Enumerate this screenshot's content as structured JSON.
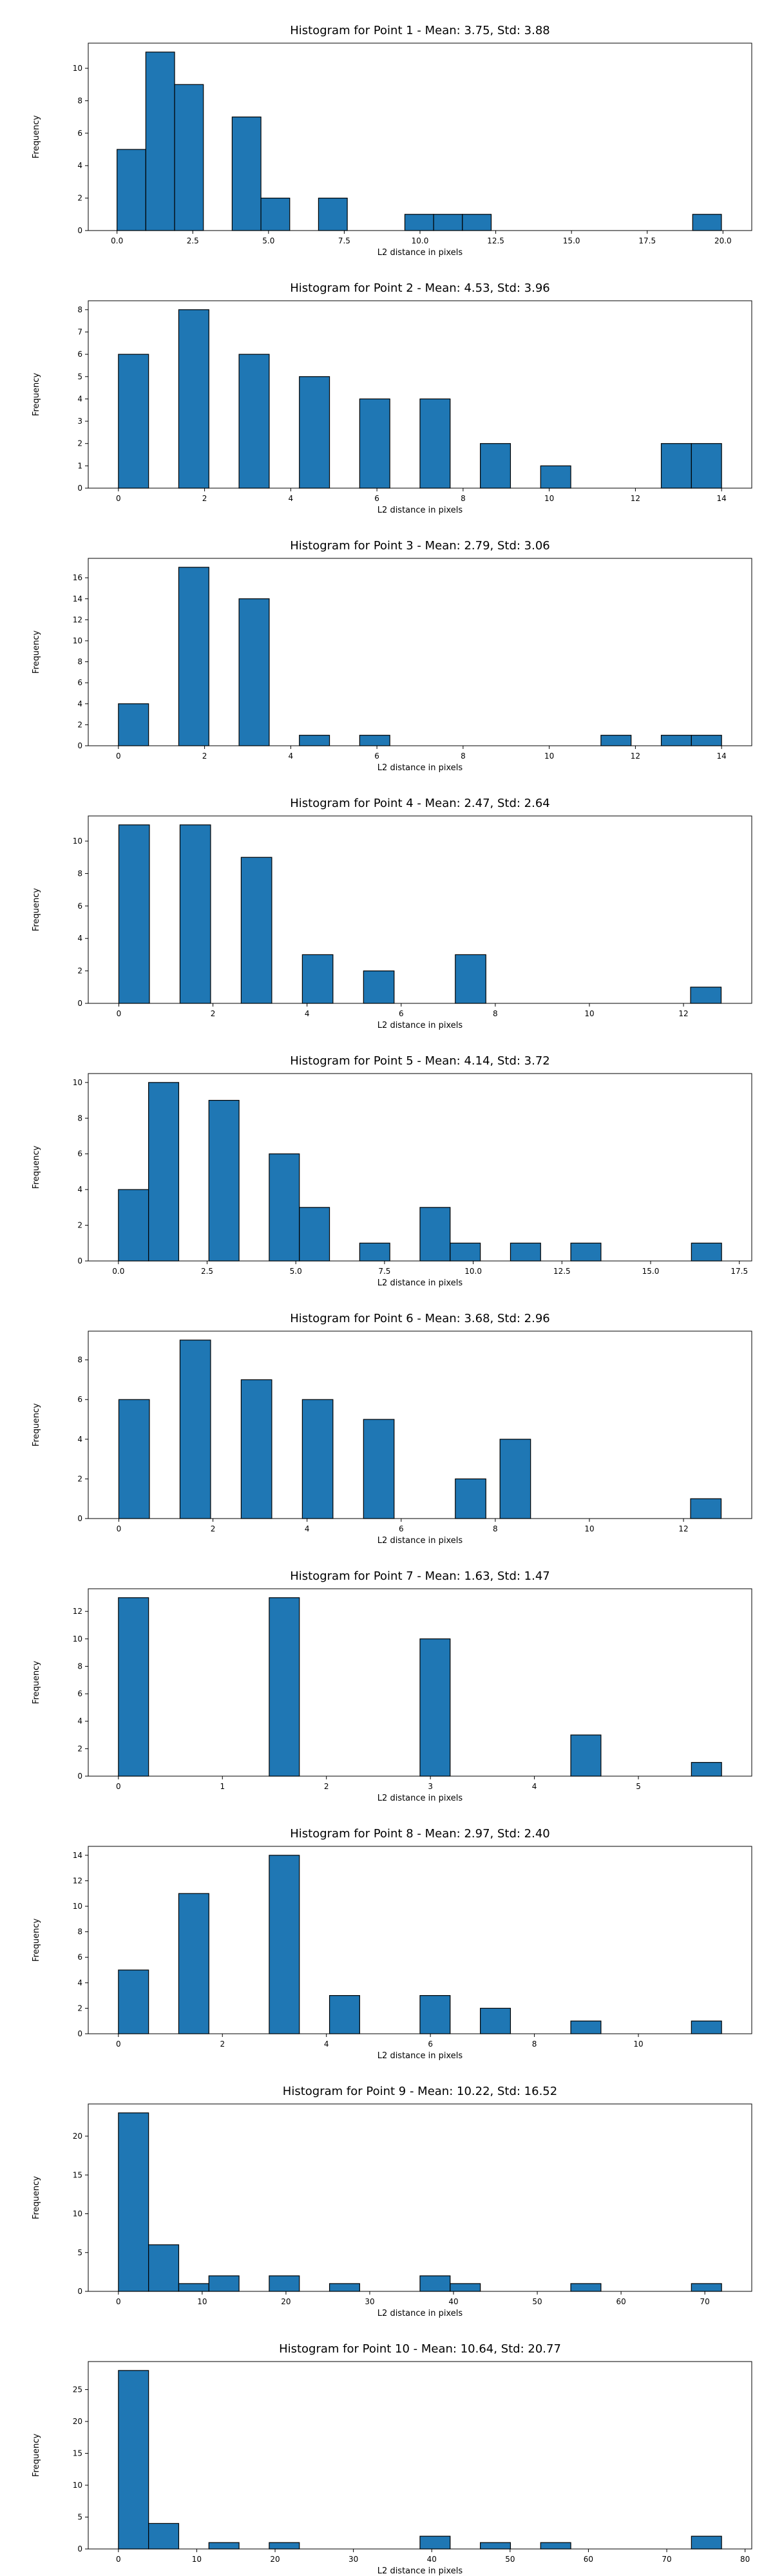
{
  "chart_data": [
    {
      "type": "bar",
      "title": "Histogram for Point 1 - Mean: 3.75, Std: 3.88",
      "xlabel": "L2 distance in pixels",
      "ylabel": "Frequency",
      "xlim": [
        -0.95,
        20.95
      ],
      "ylim": [
        0,
        11.55
      ],
      "xticks": [
        0,
        2.5,
        5,
        7.5,
        10,
        12.5,
        15,
        17.5,
        20
      ],
      "xtick_labels": [
        "0.0",
        "2.5",
        "5.0",
        "7.5",
        "10.0",
        "12.5",
        "15.0",
        "17.5",
        "20.0"
      ],
      "yticks": [
        0,
        2,
        4,
        6,
        8,
        10
      ],
      "bars": [
        {
          "x0": 0.0,
          "x1": 0.95,
          "value": 5
        },
        {
          "x0": 0.95,
          "x1": 1.9,
          "value": 11
        },
        {
          "x0": 1.9,
          "x1": 2.85,
          "value": 9
        },
        {
          "x0": 3.8,
          "x1": 4.75,
          "value": 7
        },
        {
          "x0": 4.75,
          "x1": 5.7,
          "value": 2
        },
        {
          "x0": 6.65,
          "x1": 7.6,
          "value": 2
        },
        {
          "x0": 9.5,
          "x1": 10.45,
          "value": 1
        },
        {
          "x0": 10.45,
          "x1": 11.4,
          "value": 1
        },
        {
          "x0": 11.4,
          "x1": 12.35,
          "value": 1
        },
        {
          "x0": 19.0,
          "x1": 19.95,
          "value": 1
        }
      ]
    },
    {
      "type": "bar",
      "title": "Histogram for Point 2 - Mean: 4.53, Std: 3.96",
      "xlabel": "L2 distance in pixels",
      "ylabel": "Frequency",
      "xlim": [
        -0.7,
        14.7
      ],
      "ylim": [
        0,
        8.4
      ],
      "xticks": [
        0,
        2,
        4,
        6,
        8,
        10,
        12,
        14
      ],
      "xtick_labels": [
        "0",
        "2",
        "4",
        "6",
        "8",
        "10",
        "12",
        "14"
      ],
      "yticks": [
        0,
        1,
        2,
        3,
        4,
        5,
        6,
        7,
        8
      ],
      "bars": [
        {
          "x0": 0.0,
          "x1": 0.7,
          "value": 6
        },
        {
          "x0": 1.4,
          "x1": 2.1,
          "value": 8
        },
        {
          "x0": 2.8,
          "x1": 3.5,
          "value": 6
        },
        {
          "x0": 4.2,
          "x1": 4.9,
          "value": 5
        },
        {
          "x0": 5.6,
          "x1": 6.3,
          "value": 4
        },
        {
          "x0": 7.0,
          "x1": 7.7,
          "value": 4
        },
        {
          "x0": 8.4,
          "x1": 9.1,
          "value": 2
        },
        {
          "x0": 9.8,
          "x1": 10.5,
          "value": 1
        },
        {
          "x0": 12.6,
          "x1": 13.3,
          "value": 2
        },
        {
          "x0": 13.3,
          "x1": 14.0,
          "value": 2
        }
      ]
    },
    {
      "type": "bar",
      "title": "Histogram for Point 3 - Mean: 2.79, Std: 3.06",
      "xlabel": "L2 distance in pixels",
      "ylabel": "Frequency",
      "xlim": [
        -0.7,
        14.7
      ],
      "ylim": [
        0,
        17.85
      ],
      "xticks": [
        0,
        2,
        4,
        6,
        8,
        10,
        12,
        14
      ],
      "xtick_labels": [
        "0",
        "2",
        "4",
        "6",
        "8",
        "10",
        "12",
        "14"
      ],
      "yticks": [
        0,
        2,
        4,
        6,
        8,
        10,
        12,
        14,
        16
      ],
      "bars": [
        {
          "x0": 0.0,
          "x1": 0.7,
          "value": 4
        },
        {
          "x0": 1.4,
          "x1": 2.1,
          "value": 17
        },
        {
          "x0": 2.8,
          "x1": 3.5,
          "value": 14
        },
        {
          "x0": 4.2,
          "x1": 4.9,
          "value": 1
        },
        {
          "x0": 5.6,
          "x1": 6.3,
          "value": 1
        },
        {
          "x0": 11.2,
          "x1": 11.9,
          "value": 1
        },
        {
          "x0": 12.6,
          "x1": 13.3,
          "value": 1
        },
        {
          "x0": 13.3,
          "x1": 14.0,
          "value": 1
        }
      ]
    },
    {
      "type": "bar",
      "title": "Histogram for Point 4 - Mean: 2.47, Std: 2.64",
      "xlabel": "L2 distance in pixels",
      "ylabel": "Frequency",
      "xlim": [
        -0.65,
        13.45
      ],
      "ylim": [
        0,
        11.55
      ],
      "xticks": [
        0,
        2,
        4,
        6,
        8,
        10,
        12
      ],
      "xtick_labels": [
        "0",
        "2",
        "4",
        "6",
        "8",
        "10",
        "12"
      ],
      "yticks": [
        0,
        2,
        4,
        6,
        8,
        10
      ],
      "bars": [
        {
          "x0": 0.0,
          "x1": 0.65,
          "value": 11
        },
        {
          "x0": 1.3,
          "x1": 1.95,
          "value": 11
        },
        {
          "x0": 2.6,
          "x1": 3.25,
          "value": 9
        },
        {
          "x0": 3.9,
          "x1": 4.55,
          "value": 3
        },
        {
          "x0": 5.2,
          "x1": 5.85,
          "value": 2
        },
        {
          "x0": 7.15,
          "x1": 7.8,
          "value": 3
        },
        {
          "x0": 12.15,
          "x1": 12.8,
          "value": 1
        }
      ]
    },
    {
      "type": "bar",
      "title": "Histogram for Point 5 - Mean: 4.14, Std: 3.72",
      "xlabel": "L2 distance in pixels",
      "ylabel": "Frequency",
      "xlim": [
        -0.85,
        17.85
      ],
      "ylim": [
        0,
        10.5
      ],
      "xticks": [
        0,
        2.5,
        5,
        7.5,
        10,
        12.5,
        15,
        17.5
      ],
      "xtick_labels": [
        "0.0",
        "2.5",
        "5.0",
        "7.5",
        "10.0",
        "12.5",
        "15.0",
        "17.5"
      ],
      "yticks": [
        0,
        2,
        4,
        6,
        8,
        10
      ],
      "bars": [
        {
          "x0": 0.0,
          "x1": 0.85,
          "value": 4
        },
        {
          "x0": 0.85,
          "x1": 1.7,
          "value": 10
        },
        {
          "x0": 2.55,
          "x1": 3.4,
          "value": 9
        },
        {
          "x0": 4.25,
          "x1": 5.1,
          "value": 6
        },
        {
          "x0": 5.1,
          "x1": 5.95,
          "value": 3
        },
        {
          "x0": 6.8,
          "x1": 7.65,
          "value": 1
        },
        {
          "x0": 8.5,
          "x1": 9.35,
          "value": 3
        },
        {
          "x0": 9.35,
          "x1": 10.2,
          "value": 1
        },
        {
          "x0": 11.05,
          "x1": 11.9,
          "value": 1
        },
        {
          "x0": 12.75,
          "x1": 13.6,
          "value": 1
        },
        {
          "x0": 16.15,
          "x1": 17.0,
          "value": 1
        }
      ]
    },
    {
      "type": "bar",
      "title": "Histogram for Point 6 - Mean: 3.68, Std: 2.96",
      "xlabel": "L2 distance in pixels",
      "ylabel": "Frequency",
      "xlim": [
        -0.65,
        13.45
      ],
      "ylim": [
        0,
        9.45
      ],
      "xticks": [
        0,
        2,
        4,
        6,
        8,
        10,
        12
      ],
      "xtick_labels": [
        "0",
        "2",
        "4",
        "6",
        "8",
        "10",
        "12"
      ],
      "yticks": [
        0,
        2,
        4,
        6,
        8
      ],
      "bars": [
        {
          "x0": 0.0,
          "x1": 0.65,
          "value": 6
        },
        {
          "x0": 1.3,
          "x1": 1.95,
          "value": 9
        },
        {
          "x0": 2.6,
          "x1": 3.25,
          "value": 7
        },
        {
          "x0": 3.9,
          "x1": 4.55,
          "value": 6
        },
        {
          "x0": 5.2,
          "x1": 5.85,
          "value": 5
        },
        {
          "x0": 7.15,
          "x1": 7.8,
          "value": 2
        },
        {
          "x0": 8.1,
          "x1": 8.75,
          "value": 4
        },
        {
          "x0": 12.15,
          "x1": 12.8,
          "value": 1
        }
      ]
    },
    {
      "type": "bar",
      "title": "Histogram for Point 7 - Mean: 1.63, Std: 1.47",
      "xlabel": "L2 distance in pixels",
      "ylabel": "Frequency",
      "xlim": [
        -0.29,
        6.09
      ],
      "ylim": [
        0,
        13.65
      ],
      "xticks": [
        0,
        1,
        2,
        3,
        4,
        5
      ],
      "xtick_labels": [
        "0",
        "1",
        "2",
        "3",
        "4",
        "5"
      ],
      "yticks": [
        0,
        2,
        4,
        6,
        8,
        10,
        12
      ],
      "bars": [
        {
          "x0": 0.0,
          "x1": 0.29,
          "value": 13
        },
        {
          "x0": 1.45,
          "x1": 1.74,
          "value": 13
        },
        {
          "x0": 2.9,
          "x1": 3.19,
          "value": 10
        },
        {
          "x0": 4.35,
          "x1": 4.64,
          "value": 3
        },
        {
          "x0": 5.51,
          "x1": 5.8,
          "value": 1
        }
      ]
    },
    {
      "type": "bar",
      "title": "Histogram for Point 8 - Mean: 2.97, Std: 2.40",
      "xlabel": "L2 distance in pixels",
      "ylabel": "Frequency",
      "xlim": [
        -0.58,
        12.18
      ],
      "ylim": [
        0,
        14.7
      ],
      "xticks": [
        0,
        2,
        4,
        6,
        8,
        10
      ],
      "xtick_labels": [
        "0",
        "2",
        "4",
        "6",
        "8",
        "10"
      ],
      "yticks": [
        0,
        2,
        4,
        6,
        8,
        10,
        12,
        14
      ],
      "bars": [
        {
          "x0": 0.0,
          "x1": 0.58,
          "value": 5
        },
        {
          "x0": 1.16,
          "x1": 1.74,
          "value": 11
        },
        {
          "x0": 2.9,
          "x1": 3.48,
          "value": 14
        },
        {
          "x0": 4.06,
          "x1": 4.64,
          "value": 3
        },
        {
          "x0": 5.8,
          "x1": 6.38,
          "value": 3
        },
        {
          "x0": 6.96,
          "x1": 7.54,
          "value": 2
        },
        {
          "x0": 8.7,
          "x1": 9.28,
          "value": 1
        },
        {
          "x0": 11.02,
          "x1": 11.6,
          "value": 1
        }
      ]
    },
    {
      "type": "bar",
      "title": "Histogram for Point 9 - Mean: 10.22, Std: 16.52",
      "xlabel": "L2 distance in pixels",
      "ylabel": "Frequency",
      "xlim": [
        -3.6,
        75.6
      ],
      "ylim": [
        0,
        24.15
      ],
      "xticks": [
        0,
        10,
        20,
        30,
        40,
        50,
        60,
        70
      ],
      "xtick_labels": [
        "0",
        "10",
        "20",
        "30",
        "40",
        "50",
        "60",
        "70"
      ],
      "yticks": [
        0,
        5,
        10,
        15,
        20
      ],
      "bars": [
        {
          "x0": 0.0,
          "x1": 3.6,
          "value": 23
        },
        {
          "x0": 3.6,
          "x1": 7.2,
          "value": 6
        },
        {
          "x0": 7.2,
          "x1": 10.8,
          "value": 1
        },
        {
          "x0": 10.8,
          "x1": 14.4,
          "value": 2
        },
        {
          "x0": 18.0,
          "x1": 21.6,
          "value": 2
        },
        {
          "x0": 25.2,
          "x1": 28.8,
          "value": 1
        },
        {
          "x0": 36.0,
          "x1": 39.6,
          "value": 2
        },
        {
          "x0": 39.6,
          "x1": 43.2,
          "value": 1
        },
        {
          "x0": 54.0,
          "x1": 57.6,
          "value": 1
        },
        {
          "x0": 68.4,
          "x1": 72.0,
          "value": 1
        }
      ]
    },
    {
      "type": "bar",
      "title": "Histogram for Point 10 - Mean: 10.64, Std: 20.77",
      "xlabel": "L2 distance in pixels",
      "ylabel": "Frequency",
      "xlim": [
        -3.85,
        80.85
      ],
      "ylim": [
        0,
        29.4
      ],
      "xticks": [
        0,
        10,
        20,
        30,
        40,
        50,
        60,
        70,
        80
      ],
      "xtick_labels": [
        "0",
        "10",
        "20",
        "30",
        "40",
        "50",
        "60",
        "70",
        "80"
      ],
      "yticks": [
        0,
        5,
        10,
        15,
        20,
        25
      ],
      "bars": [
        {
          "x0": 0.0,
          "x1": 3.85,
          "value": 28
        },
        {
          "x0": 3.85,
          "x1": 7.7,
          "value": 4
        },
        {
          "x0": 11.55,
          "x1": 15.4,
          "value": 1
        },
        {
          "x0": 19.25,
          "x1": 23.1,
          "value": 1
        },
        {
          "x0": 38.5,
          "x1": 42.35,
          "value": 2
        },
        {
          "x0": 46.2,
          "x1": 50.05,
          "value": 1
        },
        {
          "x0": 53.9,
          "x1": 57.75,
          "value": 1
        },
        {
          "x0": 73.15,
          "x1": 77.0,
          "value": 2
        }
      ]
    }
  ]
}
